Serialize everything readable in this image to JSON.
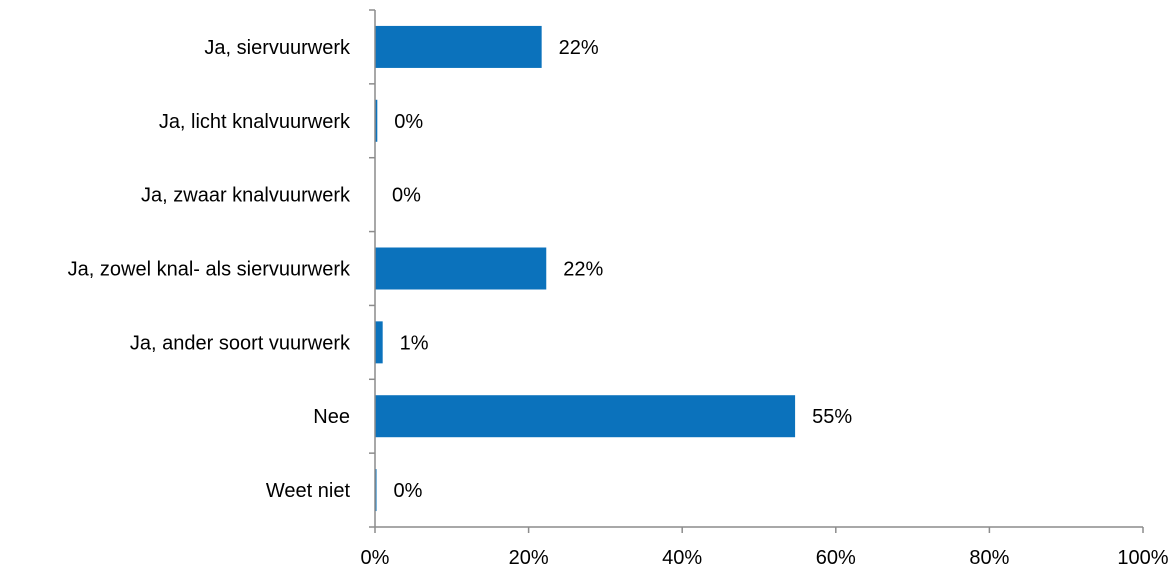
{
  "chart_data": {
    "type": "bar",
    "orientation": "horizontal",
    "categories": [
      "Ja, siervuurwerk",
      "Ja, licht knalvuurwerk",
      "Ja, zwaar knalvuurwerk",
      "Ja, zowel knal- als siervuurwerk",
      "Ja, ander soort vuurwerk",
      "Nee",
      "Weet niet"
    ],
    "values": [
      21.7,
      0.3,
      0,
      22.3,
      1.0,
      54.7,
      0.2
    ],
    "data_labels": [
      "22%",
      "0%",
      "0%",
      "22%",
      "1%",
      "55%",
      "0%"
    ],
    "xlim": [
      0,
      100
    ],
    "x_ticks": [
      0,
      20,
      40,
      60,
      80,
      100
    ],
    "x_tick_labels": [
      "0%",
      "20%",
      "40%",
      "60%",
      "80%",
      "100%"
    ],
    "title": "",
    "xlabel": "",
    "ylabel": "",
    "grid": false,
    "legend": "none",
    "bar_color": "#0B72BC",
    "axis_color": "#8C8C8C"
  }
}
